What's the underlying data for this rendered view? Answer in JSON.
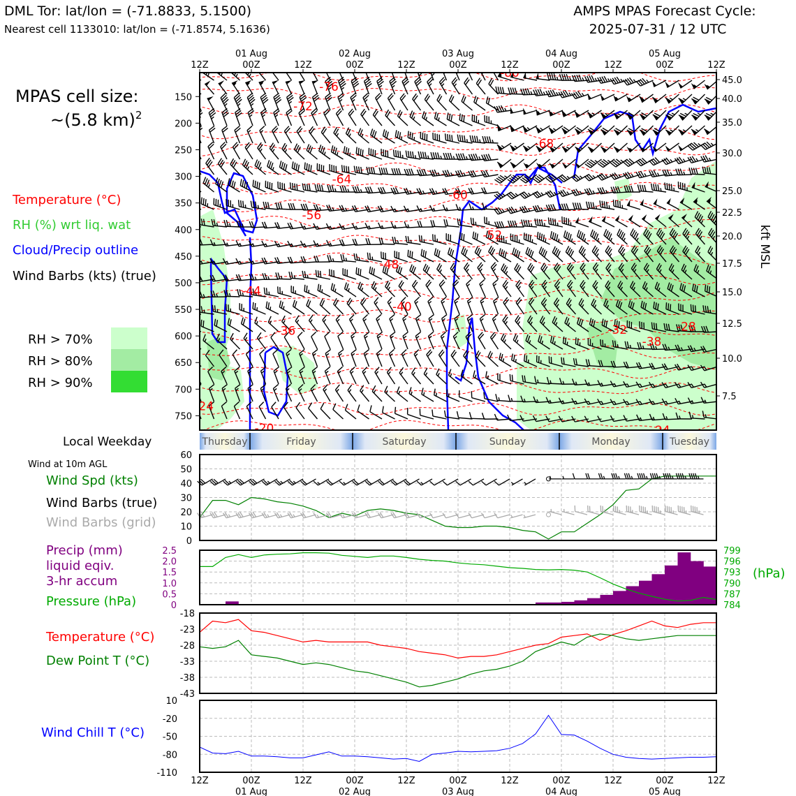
{
  "header": {
    "station": "DML Tor: lat/lon = (-71.8833, 5.1500)",
    "nearest_cell": "Nearest cell 1133010: lat/lon = (-71.8574, 5.1636)",
    "cycle_title": "AMPS MPAS Forecast Cycle:",
    "cycle_time": "2025-07-31 / 12 UTC"
  },
  "cell_size": {
    "line1": "MPAS cell size:",
    "line2": "~(5.8 km)",
    "sup": "2"
  },
  "legend": {
    "temperature": "Temperature (°C)",
    "rh": "RH (%) wrt liq. wat",
    "cloud": "Cloud/Precip outline",
    "barbs": "Wind Barbs (kts) (true)",
    "rh70": "RH > 70%",
    "rh80": "RH > 80%",
    "rh90": "RH > 90%"
  },
  "colors": {
    "temperature": "#ff0000",
    "rh_text": "#33cc33",
    "cloud": "#0000ff",
    "rh70": "#ccffcc",
    "rh80": "#a3eca3",
    "rh90": "#33dd33",
    "wind_speed": "#008000",
    "precip": "#800080",
    "pressure": "#00aa00",
    "dewpoint": "#008000",
    "windchill": "#0000ff",
    "grid_barbs": "#aaaaaa"
  },
  "time_axis": {
    "hours": 120,
    "labels": [
      "12Z",
      "00Z",
      "12Z",
      "00Z",
      "12Z",
      "00Z",
      "12Z",
      "00Z",
      "12Z",
      "00Z",
      "12Z"
    ],
    "dates": [
      "01 Aug",
      "02 Aug",
      "03 Aug",
      "04 Aug",
      "05 Aug"
    ]
  },
  "weekday": {
    "label": "Local Weekday",
    "days": [
      "Thursday",
      "Friday",
      "Saturday",
      "Sunday",
      "Monday",
      "Tuesday"
    ]
  },
  "profile": {
    "pressure_ticks": [
      150,
      200,
      250,
      300,
      350,
      400,
      450,
      500,
      550,
      600,
      650,
      700,
      750
    ],
    "kft_ticks": [
      45.0,
      40.0,
      35.0,
      30.0,
      25.0,
      22.5,
      20.0,
      17.5,
      15.0,
      12.5,
      10.0,
      7.5
    ],
    "kft_label": "kft MSL",
    "temp_labels": [
      {
        "t": "-80",
        "h": 72,
        "p": 105
      },
      {
        "t": "-76",
        "h": 30,
        "p": 131
      },
      {
        "t": "-72",
        "h": 24,
        "p": 168
      },
      {
        "t": "-68",
        "h": 80,
        "p": 238
      },
      {
        "t": "-64",
        "h": 33,
        "p": 305
      },
      {
        "t": "-60",
        "h": 60,
        "p": 335
      },
      {
        "t": "-56",
        "h": 26,
        "p": 373
      },
      {
        "t": "-52",
        "h": 68,
        "p": 410
      },
      {
        "t": "-48",
        "h": 44,
        "p": 465
      },
      {
        "t": "-44",
        "h": 12,
        "p": 515
      },
      {
        "t": "-40",
        "h": 47,
        "p": 545
      },
      {
        "t": "-36",
        "h": 20,
        "p": 590
      },
      {
        "t": "-32",
        "h": 97,
        "p": 588
      },
      {
        "t": "-28",
        "h": 113,
        "p": 582
      },
      {
        "t": "-38",
        "h": 105,
        "p": 610
      },
      {
        "t": "-24",
        "h": 1,
        "p": 732
      },
      {
        "t": "-20",
        "h": 15,
        "p": 773
      },
      {
        "t": "-24",
        "h": 107,
        "p": 777
      }
    ]
  },
  "wind10m": {
    "title": "Wind at 10m AGL",
    "spd_label": "Wind Spd (kts)",
    "barbs_true": "Wind Barbs (true)",
    "barbs_grid": "Wind Barbs (grid)",
    "yticks": [
      0,
      10,
      20,
      30,
      40,
      50,
      60
    ]
  },
  "precip": {
    "label1": "Precip (mm)",
    "label2": "liquid eqiv.",
    "label3": "3-hr accum",
    "pressure_label": "Pressure (hPa)",
    "hpa_unit": "(hPa)",
    "yticks": [
      "0",
      "0.5",
      "1.0",
      "1.5",
      "2.0",
      "2.5"
    ],
    "pticks": [
      "784",
      "787",
      "790",
      "793",
      "796",
      "799"
    ]
  },
  "temps": {
    "t_label": "Temperature (°C)",
    "td_label": "Dew Point T (°C)",
    "yticks": [
      -18,
      -23,
      -28,
      -33,
      -38,
      -43
    ]
  },
  "windchill": {
    "label": "Wind Chill T (°C)",
    "yticks": [
      10,
      -20,
      -50,
      -80,
      -110
    ]
  },
  "chart_data": [
    {
      "type": "line",
      "title": "Wind at 10m AGL",
      "ylabel": "Wind Spd (kts)",
      "ylim": [
        0,
        60
      ],
      "x_hours": [
        0,
        3,
        6,
        9,
        12,
        15,
        18,
        21,
        24,
        27,
        30,
        33,
        36,
        39,
        42,
        45,
        48,
        51,
        54,
        57,
        60,
        63,
        66,
        69,
        72,
        75,
        78,
        81,
        84,
        87,
        90,
        93,
        96,
        99,
        102,
        105,
        108,
        111,
        114,
        117,
        120
      ],
      "values": [
        16,
        28,
        28,
        25,
        30,
        29,
        27,
        26,
        24,
        21,
        16,
        19,
        17,
        21,
        22,
        21,
        19,
        18,
        14,
        10,
        9,
        9,
        10,
        10,
        9,
        7,
        6,
        1,
        6,
        6,
        12,
        18,
        25,
        35,
        36,
        43,
        45,
        45,
        45,
        45,
        45
      ]
    },
    {
      "type": "bar",
      "title": "Precip 3-hr accum",
      "ylabel": "Precip (mm)",
      "ylim": [
        0,
        2.5
      ],
      "x_hours": [
        0,
        3,
        6,
        9,
        12,
        15,
        18,
        21,
        24,
        27,
        30,
        33,
        36,
        39,
        42,
        45,
        48,
        51,
        54,
        57,
        60,
        63,
        66,
        69,
        72,
        75,
        78,
        81,
        84,
        87,
        90,
        93,
        96,
        99,
        102,
        105,
        108,
        111,
        114,
        117
      ],
      "values": [
        0.03,
        0,
        0.15,
        0.03,
        0,
        0,
        0,
        0,
        0,
        0,
        0,
        0,
        0,
        0,
        0,
        0,
        0,
        0,
        0,
        0,
        0,
        0,
        0,
        0,
        0,
        0,
        0.1,
        0.1,
        0.13,
        0.2,
        0.3,
        0.45,
        0.63,
        0.85,
        1.1,
        1.4,
        1.8,
        2.4,
        2.0,
        1.75
      ]
    },
    {
      "type": "line",
      "title": "Pressure (hPa)",
      "ylim": [
        784,
        799
      ],
      "x_hours": [
        0,
        3,
        6,
        9,
        12,
        15,
        18,
        21,
        24,
        27,
        30,
        33,
        36,
        39,
        42,
        45,
        48,
        51,
        54,
        57,
        60,
        63,
        66,
        69,
        72,
        75,
        78,
        81,
        84,
        87,
        90,
        93,
        96,
        99,
        102,
        105,
        108,
        111,
        114,
        117,
        120
      ],
      "values": [
        794.5,
        794.5,
        797,
        797.8,
        797,
        797.7,
        797.9,
        798,
        798.3,
        798.3,
        798.2,
        797.6,
        797.3,
        797,
        797.4,
        797.4,
        797,
        796.5,
        796.2,
        796,
        795.5,
        795.2,
        795,
        794.6,
        794.2,
        794,
        793.7,
        793.6,
        793.7,
        793.5,
        793,
        791.4,
        789.7,
        788.3,
        787.2,
        786.3,
        785.5,
        785,
        785.2,
        786,
        785.4
      ]
    },
    {
      "type": "line",
      "title": "Temperature and Dew Point",
      "ylim": [
        -43,
        -18
      ],
      "x_hours": [
        0,
        3,
        6,
        9,
        12,
        15,
        18,
        21,
        24,
        27,
        30,
        33,
        36,
        39,
        42,
        45,
        48,
        51,
        54,
        57,
        60,
        63,
        66,
        69,
        72,
        75,
        78,
        81,
        84,
        87,
        90,
        93,
        96,
        99,
        102,
        105,
        108,
        111,
        114,
        117,
        120
      ],
      "series": [
        {
          "name": "Temperature (°C)",
          "values": [
            -24,
            -20.5,
            -21,
            -20,
            -23.5,
            -24,
            -25,
            -26,
            -27,
            -26.5,
            -27,
            -27,
            -27,
            -27,
            -28,
            -28.5,
            -29,
            -30,
            -30.5,
            -31,
            -32,
            -31.5,
            -31.5,
            -31,
            -30,
            -29,
            -28,
            -27.5,
            -25.5,
            -25,
            -24.5,
            -26.5,
            -24.7,
            -23.5,
            -22,
            -20.5,
            -22,
            -22.5,
            -21.5,
            -21,
            -21
          ]
        },
        {
          "name": "Dew Point T (°C)",
          "values": [
            -28.5,
            -29,
            -28.5,
            -26.5,
            -31,
            -31.5,
            -32,
            -33,
            -34,
            -33.5,
            -34,
            -35,
            -36,
            -36.5,
            -37.5,
            -38.5,
            -39.5,
            -41,
            -40.5,
            -39.5,
            -38.5,
            -37,
            -36,
            -35.5,
            -34.5,
            -33,
            -30,
            -28.5,
            -27,
            -28,
            -25.5,
            -24.5,
            -25,
            -26,
            -26.5,
            -26,
            -25.5,
            -25,
            -25,
            -25,
            -25
          ]
        }
      ]
    },
    {
      "type": "line",
      "title": "Wind Chill T (°C)",
      "ylim": [
        -110,
        10
      ],
      "x_hours": [
        0,
        3,
        6,
        9,
        12,
        15,
        18,
        21,
        24,
        27,
        30,
        33,
        36,
        39,
        42,
        45,
        48,
        51,
        54,
        57,
        60,
        63,
        66,
        69,
        72,
        75,
        78,
        81,
        84,
        87,
        90,
        93,
        96,
        99,
        102,
        105,
        108,
        111,
        114,
        117,
        120
      ],
      "values": [
        -68,
        -78,
        -79,
        -75,
        -83,
        -83,
        -84,
        -86,
        -86,
        -81,
        -76,
        -83,
        -83,
        -84,
        -86,
        -88,
        -87,
        -92,
        -80,
        -78,
        -75,
        -76,
        -75,
        -74,
        -70,
        -62,
        -46,
        -15,
        -47,
        -48,
        -58,
        -70,
        -80,
        -85,
        -87,
        -88,
        -87,
        -86,
        -85,
        -85,
        -84
      ]
    }
  ]
}
